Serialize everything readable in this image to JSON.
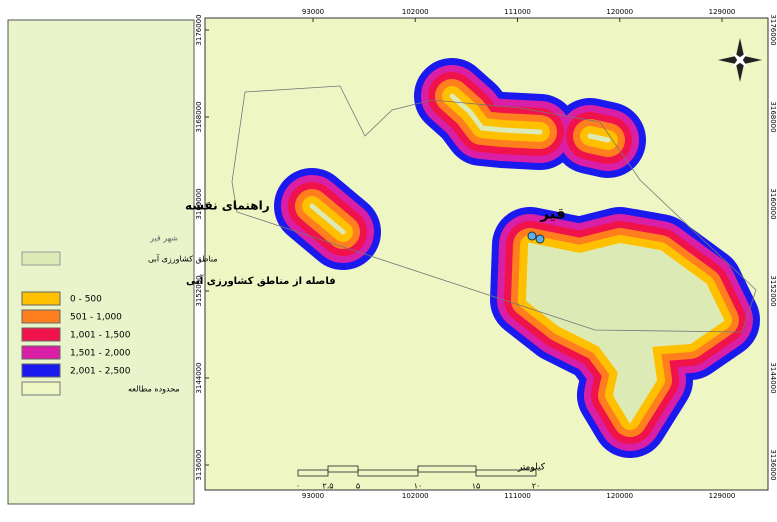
{
  "legend": {
    "title": "راهنمای نقشه",
    "city": "شهر قیر",
    "irrigated": "مناطق کشاورزی آبی",
    "distance_title": "فاصله از مناطق کشاورزی آبی",
    "classes": [
      {
        "label": "0 - 500",
        "color": "#ffc000"
      },
      {
        "label": "501 - 1,000",
        "color": "#ff7f1e"
      },
      {
        "label": "1,001 - 1,500",
        "color": "#f0124a"
      },
      {
        "label": "1,501 - 2,000",
        "color": "#d81fa6"
      },
      {
        "label": "2,001 - 2,500",
        "color": "#1a1aef"
      }
    ],
    "study_area": "محدوده مطالعه"
  },
  "map": {
    "city_label": "قیر",
    "xticks": [
      93000,
      102000,
      111000,
      120000,
      129000
    ],
    "yticks": [
      3176000,
      3168000,
      3160000,
      3152000,
      3144000,
      3136000
    ],
    "scale_unit": "کیلومتر",
    "scale_labels": [
      "۰",
      "۲،۵",
      "۵",
      "۱۰",
      "۱۵",
      "۲۰"
    ]
  }
}
